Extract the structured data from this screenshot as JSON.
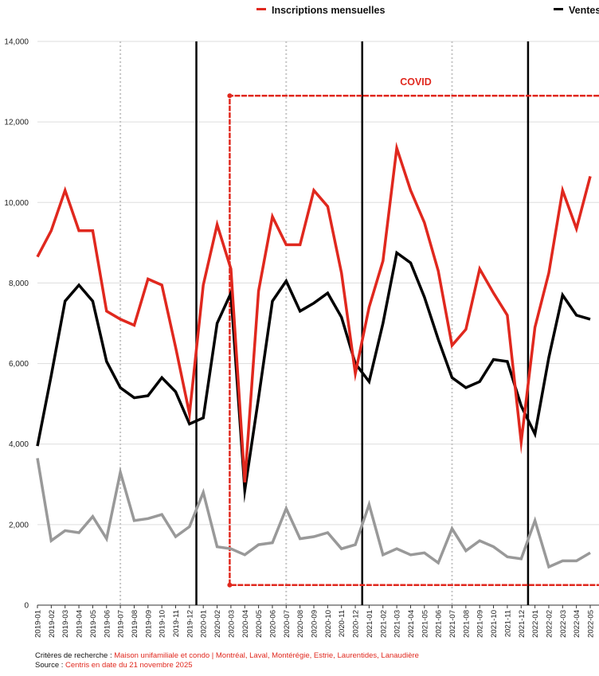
{
  "legend": {
    "items": [
      {
        "label": "Inscriptions mensuelles",
        "color": "#e0281e"
      },
      {
        "label": "Ventes",
        "color": "#000000"
      }
    ]
  },
  "annotation": {
    "covid_label": "COVID",
    "covid_start": "2020-03",
    "covid_color": "#e0281e"
  },
  "footer": {
    "criteria_label": "Critères de recherche : ",
    "criteria_value": "Maison unifamiliale et condo | Montréal, Laval, Montérégie, Estrie, Laurentides, Lanaudière",
    "source_label": "Source : ",
    "source_value": "Centris en date du 21 novembre 2025"
  },
  "chart_data": {
    "type": "line",
    "grid": true,
    "ylim": [
      0,
      14000
    ],
    "yticks": [
      0,
      2000,
      4000,
      6000,
      8000,
      10000,
      12000,
      14000
    ],
    "ytick_labels": [
      "0",
      "2,000",
      "4,000",
      "6,000",
      "8,000",
      "10,000",
      "12,000",
      "14,000"
    ],
    "x": [
      "2019-01",
      "2019-02",
      "2019-03",
      "2019-04",
      "2019-05",
      "2019-06",
      "2019-07",
      "2019-08",
      "2019-09",
      "2019-10",
      "2019-11",
      "2019-12",
      "2020-01",
      "2020-02",
      "2020-03",
      "2020-04",
      "2020-05",
      "2020-06",
      "2020-07",
      "2020-08",
      "2020-09",
      "2020-10",
      "2020-11",
      "2020-12",
      "2021-01",
      "2021-02",
      "2021-03",
      "2021-04",
      "2021-05",
      "2021-06",
      "2021-07",
      "2021-08",
      "2021-09",
      "2021-10",
      "2021-11",
      "2021-12",
      "2022-01",
      "2022-02",
      "2022-03",
      "2022-04",
      "2022-05"
    ],
    "year_lines": [
      "2020-01",
      "2021-01",
      "2022-01"
    ],
    "midyear_lines": [
      "2019-07",
      "2020-07",
      "2021-07"
    ],
    "series": [
      {
        "name": "Inscriptions mensuelles",
        "color": "#e0281e",
        "values": [
          8650,
          9300,
          10300,
          9300,
          9300,
          7300,
          7100,
          6950,
          8100,
          7950,
          6400,
          4750,
          7950,
          9450,
          8350,
          3050,
          7800,
          9650,
          8950,
          8950,
          10300,
          9900,
          8250,
          5750,
          7400,
          8550,
          11350,
          10300,
          9500,
          8300,
          6450,
          6850,
          8350,
          7750,
          7200,
          4050,
          6900,
          8250,
          10300,
          9350,
          10650
        ]
      },
      {
        "color": "#000000",
        "values": [
          3950,
          5700,
          7550,
          7950,
          7550,
          6050,
          5400,
          5150,
          5200,
          5650,
          5300,
          4500,
          4650,
          7000,
          7750,
          2850,
          5150,
          7550,
          8050,
          7300,
          7500,
          7750,
          7150,
          6000,
          5550,
          7000,
          8750,
          8500,
          7650,
          6600,
          5650,
          5400,
          5550,
          6100,
          6050,
          4950,
          4250,
          6150,
          7700,
          7200,
          7100
        ]
      },
      {
        "color": "#999999",
        "values": [
          3650,
          1600,
          1850,
          1800,
          2200,
          1650,
          3300,
          2100,
          2150,
          2250,
          1700,
          1950,
          2800,
          1450,
          1400,
          1250,
          1500,
          1550,
          2400,
          1650,
          1700,
          1800,
          1400,
          1500,
          2500,
          1250,
          1400,
          1250,
          1300,
          1050,
          1900,
          1350,
          1600,
          1450,
          1200,
          1150,
          2100,
          950,
          1100,
          1100,
          1300
        ]
      }
    ]
  }
}
